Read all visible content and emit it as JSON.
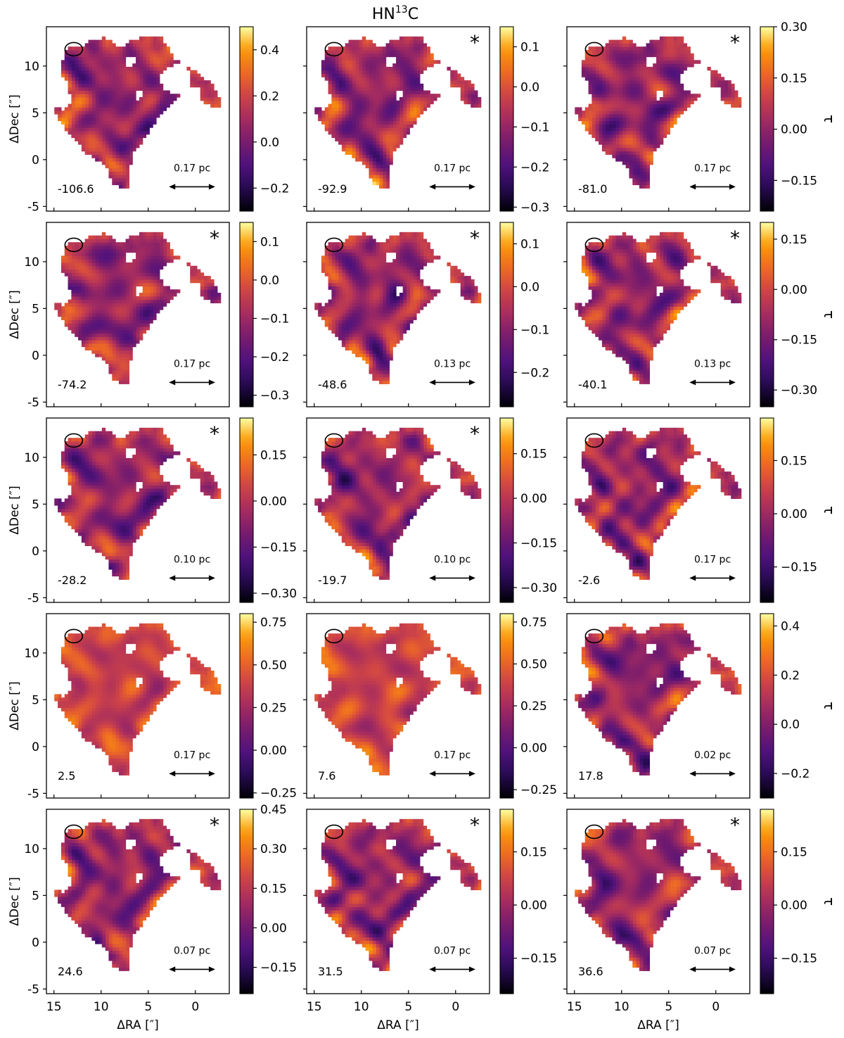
{
  "figure": {
    "title_main": "HN",
    "title_sup": "13",
    "title_tail": "C",
    "x_axis_label": "ΔRA [″]",
    "y_axis_label": "ΔDec [″]",
    "colorbar_label": "τ",
    "scalebar_unit": "pc"
  },
  "chart_data": [
    {
      "type": "heatmap",
      "velocity": "-106.6",
      "starred": false,
      "scalebar": "0.17",
      "xlim": [
        15.8,
        -3.6
      ],
      "ylim": [
        -5.5,
        14.2
      ],
      "xticks": [
        15,
        10,
        5,
        0
      ],
      "yticks": [
        -5,
        0,
        5,
        10
      ],
      "clim": [
        -0.3,
        0.5
      ],
      "cticks": [
        "0.4",
        "0.2",
        "0.0",
        "−0.2"
      ],
      "cvals": [
        0.4,
        0.2,
        0.0,
        -0.2
      ],
      "seed": 1
    },
    {
      "type": "heatmap",
      "velocity": "-92.9",
      "starred": true,
      "scalebar": "0.17",
      "xlim": [
        15.8,
        -3.6
      ],
      "ylim": [
        -5.5,
        14.2
      ],
      "xticks": [
        15,
        10,
        5,
        0
      ],
      "yticks": [
        -5,
        0,
        5,
        10
      ],
      "clim": [
        -0.31,
        0.15
      ],
      "cticks": [
        "0.1",
        "0.0",
        "−0.1",
        "−0.2",
        "−0.3"
      ],
      "cvals": [
        0.1,
        0.0,
        -0.1,
        -0.2,
        -0.3
      ],
      "seed": 2
    },
    {
      "type": "heatmap",
      "velocity": "-81.0",
      "starred": true,
      "scalebar": "0.17",
      "xlim": [
        15.8,
        -3.6
      ],
      "ylim": [
        -5.5,
        14.2
      ],
      "xticks": [
        15,
        10,
        5,
        0
      ],
      "yticks": [
        -5,
        0,
        5,
        10
      ],
      "clim": [
        -0.24,
        0.3
      ],
      "cticks": [
        "0.30",
        "0.15",
        "0.00",
        "−0.15"
      ],
      "cvals": [
        0.3,
        0.15,
        0.0,
        -0.15
      ],
      "seed": 3
    },
    {
      "type": "heatmap",
      "velocity": "-74.2",
      "starred": true,
      "scalebar": "0.17",
      "xlim": [
        15.8,
        -3.6
      ],
      "ylim": [
        -5.5,
        14.2
      ],
      "xticks": [
        15,
        10,
        5,
        0
      ],
      "yticks": [
        -5,
        0,
        5,
        10
      ],
      "clim": [
        -0.33,
        0.15
      ],
      "cticks": [
        "0.1",
        "0.0",
        "−0.1",
        "−0.2",
        "−0.3"
      ],
      "cvals": [
        0.1,
        0.0,
        -0.1,
        -0.2,
        -0.3
      ],
      "seed": 4
    },
    {
      "type": "heatmap",
      "velocity": "-48.6",
      "starred": true,
      "scalebar": "0.13",
      "xlim": [
        15.8,
        -3.6
      ],
      "ylim": [
        -5.5,
        14.2
      ],
      "xticks": [
        15,
        10,
        5,
        0
      ],
      "yticks": [
        -5,
        0,
        5,
        10
      ],
      "clim": [
        -0.28,
        0.15
      ],
      "cticks": [
        "0.1",
        "0.0",
        "−0.1",
        "−0.2"
      ],
      "cvals": [
        0.1,
        0.0,
        -0.1,
        -0.2
      ],
      "seed": 5
    },
    {
      "type": "heatmap",
      "velocity": "-40.1",
      "starred": true,
      "scalebar": "0.13",
      "xlim": [
        15.8,
        -3.6
      ],
      "ylim": [
        -5.5,
        14.2
      ],
      "xticks": [
        15,
        10,
        5,
        0
      ],
      "yticks": [
        -5,
        0,
        5,
        10
      ],
      "clim": [
        -0.35,
        0.2
      ],
      "cticks": [
        "0.15",
        "0.00",
        "−0.15",
        "−0.30"
      ],
      "cvals": [
        0.15,
        0.0,
        -0.15,
        -0.3
      ],
      "seed": 6
    },
    {
      "type": "heatmap",
      "velocity": "-28.2",
      "starred": true,
      "scalebar": "0.10",
      "xlim": [
        15.8,
        -3.6
      ],
      "ylim": [
        -5.5,
        14.2
      ],
      "xticks": [
        15,
        10,
        5,
        0
      ],
      "yticks": [
        -5,
        0,
        5,
        10
      ],
      "clim": [
        -0.33,
        0.27
      ],
      "cticks": [
        "0.15",
        "0.00",
        "−0.15",
        "−0.30"
      ],
      "cvals": [
        0.15,
        0.0,
        -0.15,
        -0.3
      ],
      "seed": 7
    },
    {
      "type": "heatmap",
      "velocity": "-19.7",
      "starred": true,
      "scalebar": "0.10",
      "xlim": [
        15.8,
        -3.6
      ],
      "ylim": [
        -5.5,
        14.2
      ],
      "xticks": [
        15,
        10,
        5,
        0
      ],
      "yticks": [
        -5,
        0,
        5,
        10
      ],
      "clim": [
        -0.35,
        0.27
      ],
      "cticks": [
        "0.15",
        "0.00",
        "−0.15",
        "−0.30"
      ],
      "cvals": [
        0.15,
        0.0,
        -0.15,
        -0.3
      ],
      "seed": 8
    },
    {
      "type": "heatmap",
      "velocity": "-2.6",
      "starred": false,
      "scalebar": "0.17",
      "xlim": [
        15.8,
        -3.6
      ],
      "ylim": [
        -5.5,
        14.2
      ],
      "xticks": [
        15,
        10,
        5,
        0
      ],
      "yticks": [
        -5,
        0,
        5,
        10
      ],
      "clim": [
        -0.25,
        0.27
      ],
      "cticks": [
        "0.15",
        "0.00",
        "−0.15"
      ],
      "cvals": [
        0.15,
        0.0,
        -0.15
      ],
      "seed": 9
    },
    {
      "type": "heatmap",
      "velocity": "2.5",
      "starred": false,
      "scalebar": "0.17",
      "xlim": [
        15.8,
        -3.6
      ],
      "ylim": [
        -5.5,
        14.2
      ],
      "xticks": [
        15,
        10,
        5,
        0
      ],
      "yticks": [
        -5,
        0,
        5,
        10
      ],
      "clim": [
        -0.28,
        0.8
      ],
      "cticks": [
        "0.75",
        "0.50",
        "0.25",
        "0.00",
        "−0.25"
      ],
      "cvals": [
        0.75,
        0.5,
        0.25,
        0.0,
        -0.25
      ],
      "seed": 10
    },
    {
      "type": "heatmap",
      "velocity": "7.6",
      "starred": false,
      "scalebar": "0.17",
      "xlim": [
        15.8,
        -3.6
      ],
      "ylim": [
        -5.5,
        14.2
      ],
      "xticks": [
        15,
        10,
        5,
        0
      ],
      "yticks": [
        -5,
        0,
        5,
        10
      ],
      "clim": [
        -0.3,
        0.8
      ],
      "cticks": [
        "0.75",
        "0.50",
        "0.25",
        "0.00",
        "−0.25"
      ],
      "cvals": [
        0.75,
        0.5,
        0.25,
        0.0,
        -0.25
      ],
      "seed": 11
    },
    {
      "type": "heatmap",
      "velocity": "17.8",
      "starred": false,
      "scalebar": "0.02",
      "xlim": [
        15.8,
        -3.6
      ],
      "ylim": [
        -5.5,
        14.2
      ],
      "xticks": [
        15,
        10,
        5,
        0
      ],
      "yticks": [
        -5,
        0,
        5,
        10
      ],
      "clim": [
        -0.3,
        0.45
      ],
      "cticks": [
        "0.4",
        "0.2",
        "0.0",
        "−0.2"
      ],
      "cvals": [
        0.4,
        0.2,
        0.0,
        -0.2
      ],
      "seed": 12
    },
    {
      "type": "heatmap",
      "velocity": "24.6",
      "starred": true,
      "scalebar": "0.07",
      "xlim": [
        15.8,
        -3.6
      ],
      "ylim": [
        -5.5,
        14.2
      ],
      "xticks": [
        15,
        10,
        5,
        0
      ],
      "yticks": [
        -5,
        0,
        5,
        10
      ],
      "clim": [
        -0.25,
        0.45
      ],
      "cticks": [
        "0.45",
        "0.30",
        "0.15",
        "0.00",
        "−0.15"
      ],
      "cvals": [
        0.45,
        0.3,
        0.15,
        0.0,
        -0.15
      ],
      "seed": 13
    },
    {
      "type": "heatmap",
      "velocity": "31.5",
      "starred": true,
      "scalebar": "0.07",
      "xlim": [
        15.8,
        -3.6
      ],
      "ylim": [
        -5.5,
        14.2
      ],
      "xticks": [
        15,
        10,
        5,
        0
      ],
      "yticks": [
        -5,
        0,
        5,
        10
      ],
      "clim": [
        -0.25,
        0.27
      ],
      "cticks": [
        "0.15",
        "0.00",
        "−0.15"
      ],
      "cvals": [
        0.15,
        0.0,
        -0.15
      ],
      "seed": 14
    },
    {
      "type": "heatmap",
      "velocity": "36.6",
      "starred": true,
      "scalebar": "0.07",
      "xlim": [
        15.8,
        -3.6
      ],
      "ylim": [
        -5.5,
        14.2
      ],
      "xticks": [
        15,
        10,
        5,
        0
      ],
      "yticks": [
        -5,
        0,
        5,
        10
      ],
      "clim": [
        -0.25,
        0.27
      ],
      "cticks": [
        "0.15",
        "0.00",
        "−0.15"
      ],
      "cvals": [
        0.15,
        0.0,
        -0.15
      ],
      "seed": 15
    }
  ]
}
